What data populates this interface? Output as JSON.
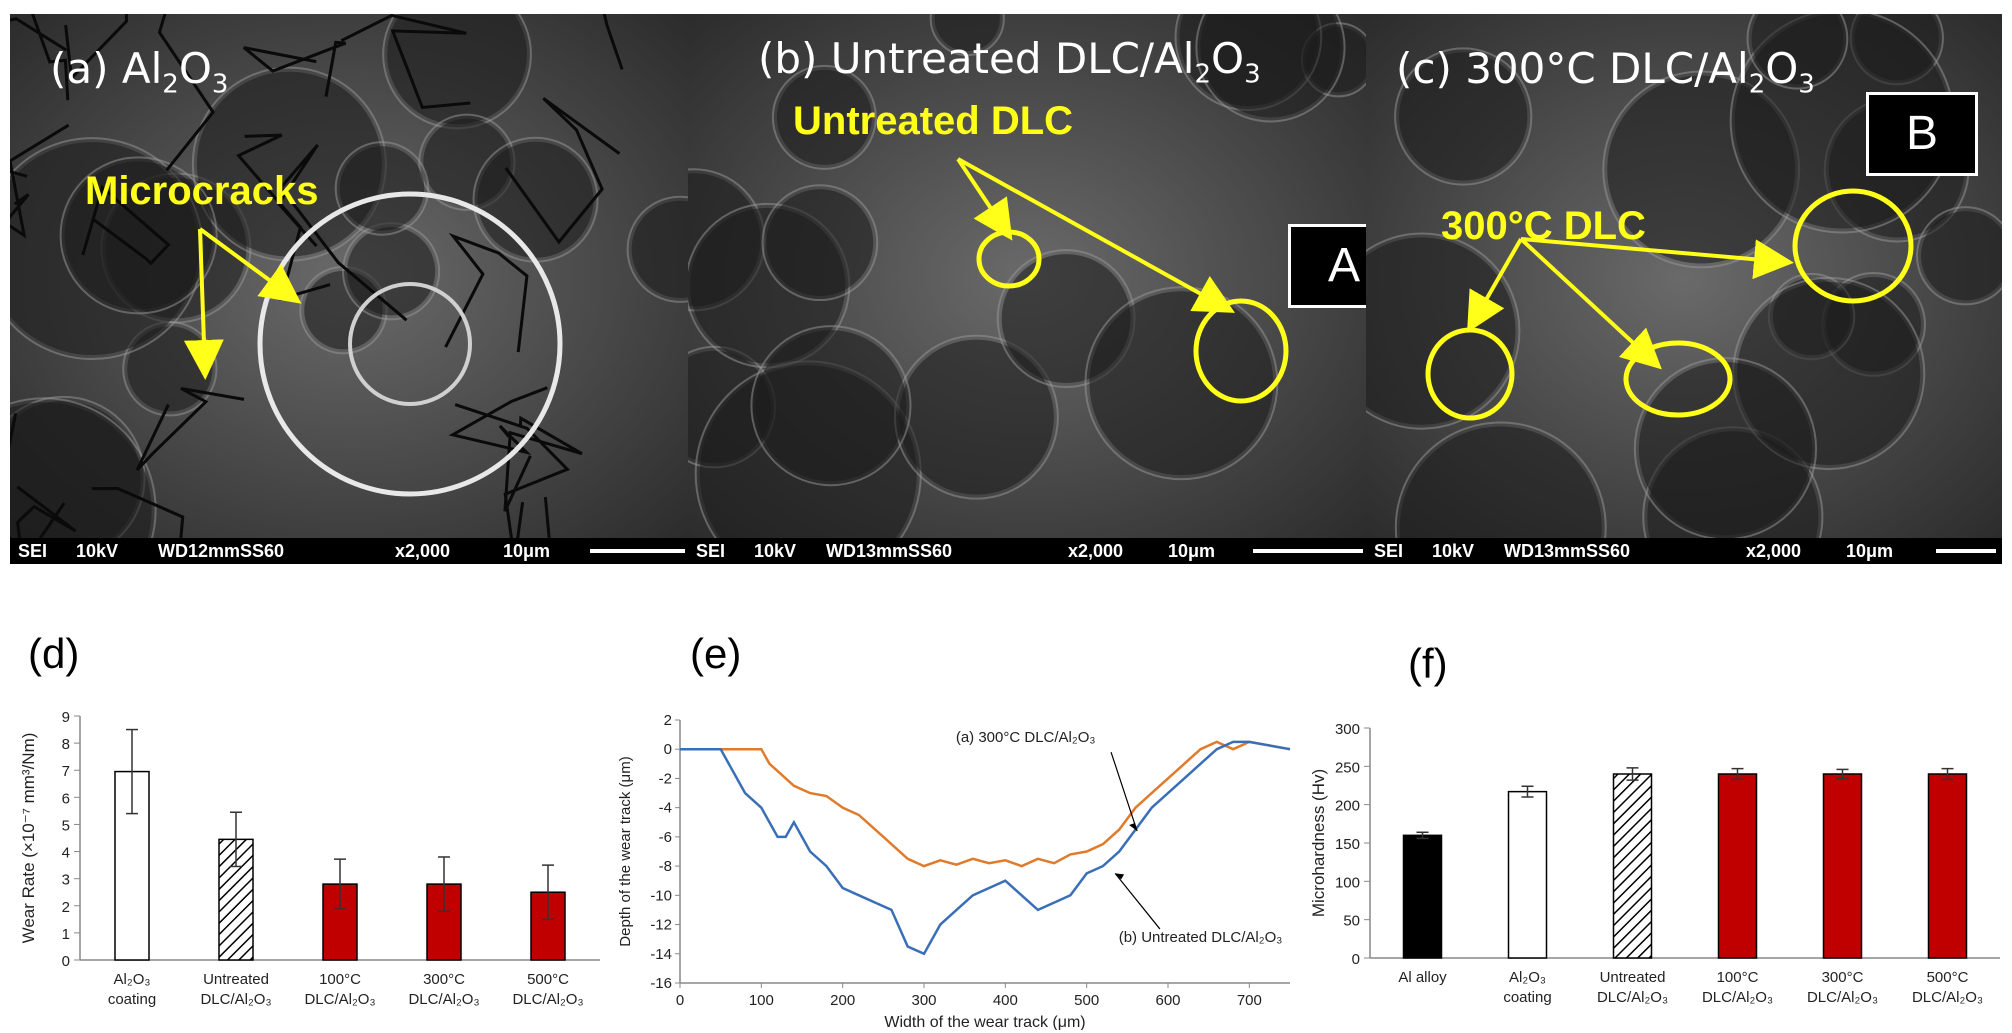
{
  "sem_panels": [
    {
      "title_pre": "(a) Al",
      "title_s1": "2",
      "title_mid": "O",
      "title_s2": "3",
      "title_post": "",
      "annotation": "Microcracks",
      "marker": "",
      "bar": {
        "mode": "SEI",
        "kv": "10kV",
        "wd": "WD12mmSS60",
        "mag": "x2,000",
        "scale": "10μm"
      }
    },
    {
      "title_pre": "(b) Untreated DLC/Al",
      "title_s1": "2",
      "title_mid": "O",
      "title_s2": "3",
      "title_post": "",
      "annotation": "Untreated DLC",
      "marker": "A",
      "bar": {
        "mode": "SEI",
        "kv": "10kV",
        "wd": "WD13mmSS60",
        "mag": "x2,000",
        "scale": "10μm"
      }
    },
    {
      "title_pre": "(c) 300°C DLC/Al",
      "title_s1": "2",
      "title_mid": "O",
      "title_s2": "3",
      "title_post": "",
      "annotation": "300°C DLC",
      "marker": "B",
      "bar": {
        "mode": "SEI",
        "kv": "10kV",
        "wd": "WD13mmSS60",
        "mag": "x2,000",
        "scale": "10μm"
      }
    }
  ],
  "panel_labels": {
    "d": "(d)",
    "e": "(e)",
    "f": "(f)"
  },
  "chart_data": [
    {
      "type": "bar",
      "ylabel": "Wear Rate (×10⁻⁷ mm³/Nm)",
      "ylim": [
        0,
        9
      ],
      "yticks": [
        0,
        1,
        2,
        3,
        4,
        5,
        6,
        7,
        8,
        9
      ],
      "categories": [
        [
          "Al₂O₃",
          "coating"
        ],
        [
          "Untreated",
          "DLC/Al₂O₃"
        ],
        [
          "100°C",
          "DLC/Al₂O₃"
        ],
        [
          "300°C",
          "DLC/Al₂O₃"
        ],
        [
          "500°C",
          "DLC/Al₂O₃"
        ]
      ],
      "values": [
        6.95,
        4.45,
        2.8,
        2.8,
        2.5
      ],
      "errors": [
        1.55,
        1.0,
        0.92,
        1.0,
        1.0
      ],
      "fills": [
        "white",
        "hatch",
        "#c00000",
        "#c00000",
        "#c00000"
      ],
      "grid": false
    },
    {
      "type": "line",
      "xlabel": "Width of the wear track (μm)",
      "ylabel": "Depth of the wear track (μm)",
      "xlim": [
        0,
        750
      ],
      "ylim": [
        -16,
        2
      ],
      "xticks": [
        0,
        100,
        200,
        300,
        400,
        500,
        600,
        700
      ],
      "yticks": [
        2,
        0,
        -2,
        -4,
        -6,
        -8,
        -10,
        -12,
        -14,
        -16
      ],
      "series": [
        {
          "name": "(a)  300°C DLC/Al₂O₃",
          "color": "#e07b2c",
          "points": [
            [
              0,
              0
            ],
            [
              100,
              0
            ],
            [
              110,
              -1
            ],
            [
              120,
              -1.5
            ],
            [
              140,
              -2.5
            ],
            [
              160,
              -3
            ],
            [
              180,
              -3.2
            ],
            [
              200,
              -4
            ],
            [
              220,
              -4.5
            ],
            [
              240,
              -5.5
            ],
            [
              260,
              -6.5
            ],
            [
              280,
              -7.5
            ],
            [
              300,
              -8
            ],
            [
              320,
              -7.6
            ],
            [
              340,
              -7.9
            ],
            [
              360,
              -7.5
            ],
            [
              380,
              -7.8
            ],
            [
              400,
              -7.6
            ],
            [
              420,
              -8
            ],
            [
              440,
              -7.5
            ],
            [
              460,
              -7.8
            ],
            [
              480,
              -7.2
            ],
            [
              500,
              -7
            ],
            [
              520,
              -6.5
            ],
            [
              540,
              -5.5
            ],
            [
              560,
              -4
            ],
            [
              580,
              -3
            ],
            [
              600,
              -2
            ],
            [
              620,
              -1
            ],
            [
              640,
              0
            ],
            [
              660,
              0.5
            ],
            [
              680,
              0
            ],
            [
              700,
              0.5
            ],
            [
              750,
              0
            ]
          ]
        },
        {
          "name": "(b)  Untreated DLC/Al₂O₃",
          "color": "#3a6fb8",
          "points": [
            [
              0,
              0
            ],
            [
              50,
              0
            ],
            [
              60,
              -1
            ],
            [
              70,
              -2
            ],
            [
              80,
              -3
            ],
            [
              100,
              -4
            ],
            [
              120,
              -6
            ],
            [
              130,
              -6
            ],
            [
              140,
              -5
            ],
            [
              160,
              -7
            ],
            [
              180,
              -8
            ],
            [
              200,
              -9.5
            ],
            [
              220,
              -10
            ],
            [
              240,
              -10.5
            ],
            [
              260,
              -11
            ],
            [
              280,
              -13.5
            ],
            [
              300,
              -14
            ],
            [
              320,
              -12
            ],
            [
              340,
              -11
            ],
            [
              360,
              -10
            ],
            [
              380,
              -9.5
            ],
            [
              400,
              -9
            ],
            [
              420,
              -10
            ],
            [
              440,
              -11
            ],
            [
              460,
              -10.5
            ],
            [
              480,
              -10
            ],
            [
              500,
              -8.5
            ],
            [
              520,
              -8
            ],
            [
              540,
              -7
            ],
            [
              560,
              -5.5
            ],
            [
              580,
              -4
            ],
            [
              600,
              -3
            ],
            [
              620,
              -2
            ],
            [
              640,
              -1
            ],
            [
              660,
              0
            ],
            [
              680,
              0.5
            ],
            [
              700,
              0.5
            ],
            [
              750,
              0
            ]
          ]
        }
      ],
      "legend_placement": "annotations on curves"
    },
    {
      "type": "bar",
      "ylabel": "Microhardness (Hv)",
      "ylim": [
        0,
        300
      ],
      "yticks": [
        0,
        50,
        100,
        150,
        200,
        250,
        300
      ],
      "categories": [
        [
          "Al alloy"
        ],
        [
          "Al₂O₃",
          "coating"
        ],
        [
          "Untreated",
          "DLC/Al₂O₃"
        ],
        [
          "100°C",
          "DLC/Al₂O₃"
        ],
        [
          "300°C",
          "DLC/Al₂O₃"
        ],
        [
          "500°C",
          "DLC/Al₂O₃"
        ]
      ],
      "values": [
        160,
        217,
        240,
        240,
        240,
        240
      ],
      "errors": [
        4,
        7,
        8,
        7,
        6,
        7
      ],
      "fills": [
        "#000000",
        "white",
        "hatch",
        "#c00000",
        "#c00000",
        "#c00000"
      ],
      "grid": false
    }
  ]
}
